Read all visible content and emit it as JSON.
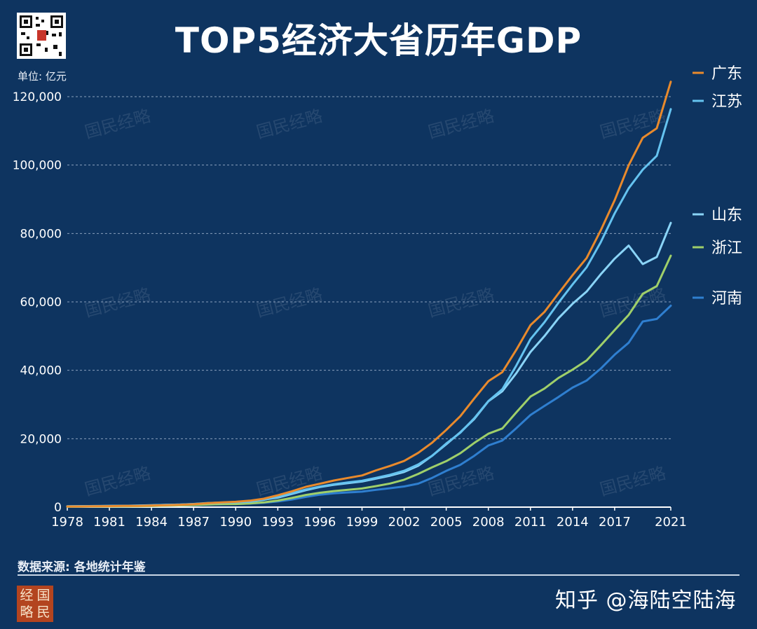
{
  "header": {
    "title": "TOP5经济大省历年GDP",
    "unit": "单位: 亿元"
  },
  "footer": {
    "source": "数据来源: 各地统计年鉴",
    "logo_chars": [
      "经",
      "国",
      "略",
      "民"
    ],
    "watermark": "知乎 @海陆空陆海"
  },
  "background_watermark": "国民经略",
  "colors": {
    "background": "#0e3460",
    "guangdong": "#e98a2c",
    "jiangsu": "#65c3f0",
    "shandong": "#8ad4f7",
    "zhejiang": "#9fcf6a",
    "henan": "#2f7fd0",
    "grid": "#9fb3cc"
  },
  "chart_data": {
    "type": "line",
    "ylim": [
      0,
      120000
    ],
    "xlim": [
      1978,
      2021
    ],
    "yticks": [
      0,
      20000,
      40000,
      60000,
      80000,
      100000,
      120000
    ],
    "ytick_labels": [
      "0",
      "20,000",
      "40,000",
      "60,000",
      "80,000",
      "100,000",
      "120,000"
    ],
    "xtick_labels": [
      "1978",
      "1981",
      "1984",
      "1987",
      "1990",
      "1993",
      "1996",
      "1999",
      "2002",
      "2005",
      "2008",
      "2011",
      "2014",
      "2017",
      "2021"
    ],
    "xticks": [
      1978,
      1981,
      1984,
      1987,
      1990,
      1993,
      1996,
      1999,
      2002,
      2005,
      2008,
      2011,
      2014,
      2017,
      2021
    ],
    "grid": true,
    "legend": "right",
    "x": [
      1978,
      1979,
      1980,
      1981,
      1982,
      1983,
      1984,
      1985,
      1986,
      1987,
      1988,
      1989,
      1990,
      1991,
      1992,
      1993,
      1994,
      1995,
      1996,
      1997,
      1998,
      1999,
      2000,
      2001,
      2002,
      2003,
      2004,
      2005,
      2006,
      2007,
      2008,
      2009,
      2010,
      2011,
      2012,
      2013,
      2014,
      2015,
      2016,
      2017,
      2018,
      2019,
      2020,
      2021
    ],
    "series": [
      {
        "key": "guangdong",
        "name": "广东",
        "values": [
          186,
          209,
          250,
          290,
          340,
          368,
          459,
          577,
          667,
          847,
          1155,
          1381,
          1559,
          1893,
          2448,
          3470,
          4619,
          5934,
          6835,
          7775,
          8531,
          9251,
          10741,
          12039,
          13502,
          15845,
          18865,
          22557,
          26588,
          31777,
          36797,
          39483,
          46036,
          53210,
          57068,
          62475,
          67810,
          72813,
          80855,
          89705,
          99945,
          107987,
          110761,
          124370
        ]
      },
      {
        "key": "jiangsu",
        "name": "江苏",
        "values": [
          249,
          298,
          320,
          350,
          390,
          438,
          518,
          652,
          744,
          922,
          1208,
          1321,
          1416,
          1601,
          2136,
          2998,
          4057,
          5155,
          6004,
          6680,
          7200,
          7697,
          8554,
          9457,
          10631,
          12461,
          15004,
          18599,
          21742,
          25988,
          30982,
          34457,
          41425,
          49110,
          54058,
          59753,
          65088,
          70116,
          77388,
          85870,
          93208,
          98656,
          102719,
          116364
        ]
      },
      {
        "key": "shandong",
        "name": "山东",
        "values": [
          225,
          251,
          292,
          346,
          395,
          459,
          582,
          681,
          742,
          892,
          1118,
          1293,
          1512,
          1811,
          2197,
          2780,
          3844,
          4953,
          5884,
          6537,
          7021,
          7493,
          8338,
          9195,
          10275,
          12078,
          15021,
          18366,
          21900,
          25776,
          30933,
          33896,
          39170,
          45362,
          50013,
          55230,
          59427,
          63002,
          68024,
          72634,
          76470,
          71067,
          73129,
          83096
        ]
      },
      {
        "key": "zhejiang",
        "name": "浙江",
        "values": [
          124,
          158,
          180,
          205,
          234,
          258,
          323,
          429,
          502,
          607,
          770,
          850,
          905,
          1089,
          1376,
          1926,
          2689,
          3558,
          4189,
          4686,
          5053,
          5444,
          6141,
          6898,
          8004,
          9705,
          11649,
          13438,
          15743,
          18780,
          21463,
          22990,
          27722,
          32319,
          34665,
          37757,
          40173,
          42886,
          47251,
          51768,
          56197,
          62352,
          64613,
          73516
        ]
      },
      {
        "key": "henan",
        "name": "河南",
        "values": [
          163,
          190,
          229,
          249,
          263,
          328,
          370,
          451,
          502,
          610,
          749,
          851,
          935,
          1045,
          1279,
          1662,
          2224,
          2988,
          3635,
          4041,
          4308,
          4518,
          5053,
          5533,
          6035,
          6868,
          8554,
          10587,
          12363,
          15012,
          18019,
          19480,
          23092,
          26931,
          29599,
          32191,
          34939,
          37002,
          40472,
          44553,
          48056,
          54259,
          54997,
          58887
        ]
      }
    ]
  }
}
